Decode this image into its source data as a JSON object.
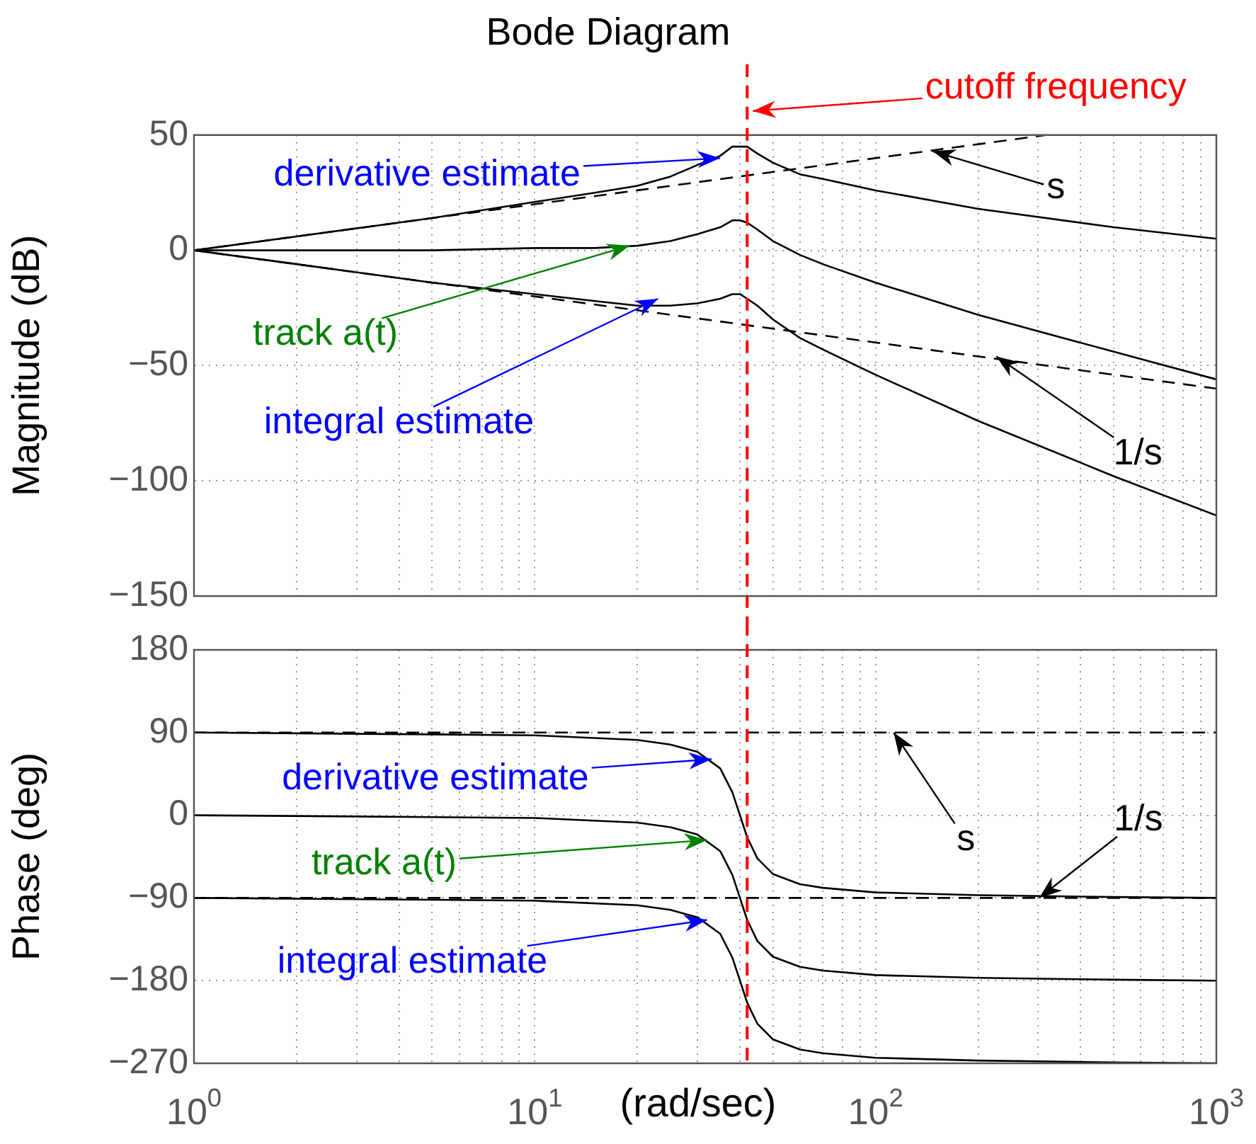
{
  "chart_data": [
    {
      "type": "line",
      "title": "Bode Diagram",
      "ylabel": "Magnitude (dB)",
      "log": "x",
      "grid": true,
      "marker": "none",
      "tick_labels": "y",
      "xlim": [
        1,
        1000
      ],
      "xticks": [
        {
          "value": 1,
          "label": null
        },
        {
          "value": 2,
          "label": null
        },
        {
          "value": 3,
          "label": null
        },
        {
          "value": 4,
          "label": null
        },
        {
          "value": 5,
          "label": null
        },
        {
          "value": 6,
          "label": null
        },
        {
          "value": 7,
          "label": null
        },
        {
          "value": 8,
          "label": null
        },
        {
          "value": 9,
          "label": null
        },
        {
          "value": 10,
          "label": null
        },
        {
          "value": 20,
          "label": null
        },
        {
          "value": 30,
          "label": null
        },
        {
          "value": 40,
          "label": null
        },
        {
          "value": 50,
          "label": null
        },
        {
          "value": 60,
          "label": null
        },
        {
          "value": 70,
          "label": null
        },
        {
          "value": 80,
          "label": null
        },
        {
          "value": 90,
          "label": null
        },
        {
          "value": 100,
          "label": null
        },
        {
          "value": 200,
          "label": null
        },
        {
          "value": 300,
          "label": null
        },
        {
          "value": 400,
          "label": null
        },
        {
          "value": 500,
          "label": null
        },
        {
          "value": 600,
          "label": null
        },
        {
          "value": 700,
          "label": null
        },
        {
          "value": 800,
          "label": null
        },
        {
          "value": 900,
          "label": null
        },
        {
          "value": 1000,
          "label": null
        }
      ],
      "ylim": [
        -150,
        50
      ],
      "yticks": [
        -150,
        -100,
        -50,
        0,
        50
      ],
      "series": [
        {
          "color": "#000000",
          "x": [
            1,
            2,
            5,
            10,
            15,
            20,
            25,
            30,
            35,
            38,
            40,
            42,
            45,
            50,
            60,
            70,
            100,
            200,
            500,
            1000
          ],
          "values": [
            0,
            6,
            14,
            21,
            25,
            28,
            32,
            37,
            41,
            45,
            45,
            45,
            42,
            38,
            33,
            31,
            26,
            18,
            10,
            5
          ]
        },
        {
          "color": "#000000",
          "x": [
            1,
            2,
            5,
            10,
            15,
            20,
            25,
            30,
            35,
            38,
            40,
            42,
            45,
            50,
            60,
            70,
            100,
            200,
            500,
            1000
          ],
          "values": [
            0,
            0,
            0,
            1,
            1,
            2,
            4,
            7,
            10,
            13,
            13,
            12,
            9,
            4,
            -2,
            -6,
            -14,
            -28,
            -44,
            -56
          ]
        },
        {
          "color": "#000000",
          "x": [
            1,
            2,
            5,
            10,
            15,
            20,
            25,
            30,
            35,
            38,
            40,
            42,
            45,
            50,
            60,
            70,
            100,
            200,
            500,
            1000
          ],
          "values": [
            0,
            -6,
            -14,
            -19,
            -22,
            -24,
            -24,
            -23,
            -21,
            -19,
            -19,
            -21,
            -24,
            -30,
            -38,
            -43,
            -54,
            -74,
            -98,
            -115
          ]
        },
        {
          "color": "#000000",
          "line_style": "dashed",
          "x": [
            1,
            316
          ],
          "values": [
            0,
            50
          ]
        },
        {
          "color": "#000000",
          "line_style": "dashed",
          "x": [
            1,
            1000
          ],
          "values": [
            0,
            -60
          ]
        }
      ],
      "ref_lines": [
        {
          "axis": "x",
          "value": 42,
          "label": "cutoff frequency",
          "color": "#ff0000",
          "line_style": "dashed"
        }
      ],
      "annotations": [
        {
          "text": "derivative estimate",
          "x": 35,
          "y": 40
        },
        {
          "text": "s",
          "x": 147,
          "y": 43
        },
        {
          "text": "track a(t)",
          "x": 19,
          "y": 2
        },
        {
          "text": "integral estimate",
          "x": 23,
          "y": -21
        },
        {
          "text": "1/s",
          "x": 226,
          "y": -46
        }
      ]
    },
    {
      "type": "line",
      "xlabel": "(rad/sec)",
      "ylabel": "Phase (deg)",
      "log": "x",
      "grid": true,
      "marker": "none",
      "xlim": [
        1,
        1000
      ],
      "xticks": [
        {
          "value": 1,
          "label": "10$^{0}$"
        },
        {
          "value": 2,
          "label": null
        },
        {
          "value": 3,
          "label": null
        },
        {
          "value": 4,
          "label": null
        },
        {
          "value": 5,
          "label": null
        },
        {
          "value": 6,
          "label": null
        },
        {
          "value": 7,
          "label": null
        },
        {
          "value": 8,
          "label": null
        },
        {
          "value": 9,
          "label": null
        },
        {
          "value": 10,
          "label": "10$^{1}$"
        },
        {
          "value": 20,
          "label": null
        },
        {
          "value": 30,
          "label": null
        },
        {
          "value": 40,
          "label": null
        },
        {
          "value": 50,
          "label": null
        },
        {
          "value": 60,
          "label": null
        },
        {
          "value": 70,
          "label": null
        },
        {
          "value": 80,
          "label": null
        },
        {
          "value": 90,
          "label": null
        },
        {
          "value": 100,
          "label": "10$^{2}$"
        },
        {
          "value": 200,
          "label": null
        },
        {
          "value": 300,
          "label": null
        },
        {
          "value": 400,
          "label": null
        },
        {
          "value": 500,
          "label": null
        },
        {
          "value": 600,
          "label": null
        },
        {
          "value": 700,
          "label": null
        },
        {
          "value": 800,
          "label": null
        },
        {
          "value": 900,
          "label": null
        },
        {
          "value": 1000,
          "label": "10$^{3}$"
        }
      ],
      "ylim": [
        -270,
        180
      ],
      "yticks": [
        -270,
        -180,
        -90,
        0,
        90,
        180
      ],
      "series": [
        {
          "color": "#000000",
          "x": [
            1,
            5,
            10,
            20,
            25,
            30,
            35,
            38,
            40,
            42,
            45,
            50,
            60,
            70,
            100,
            200,
            500,
            1000
          ],
          "values": [
            90,
            88,
            87,
            82,
            77,
            69,
            51,
            25,
            0,
            -24,
            -47,
            -64,
            -75,
            -79,
            -84,
            -87,
            -89,
            -90
          ]
        },
        {
          "color": "#000000",
          "x": [
            1,
            5,
            10,
            20,
            25,
            30,
            35,
            38,
            40,
            42,
            45,
            50,
            60,
            70,
            100,
            200,
            500,
            1000
          ],
          "values": [
            0,
            -2,
            -3,
            -8,
            -13,
            -21,
            -39,
            -65,
            -90,
            -114,
            -137,
            -154,
            -165,
            -169,
            -174,
            -177,
            -179,
            -180
          ]
        },
        {
          "color": "#000000",
          "x": [
            1,
            5,
            10,
            20,
            25,
            30,
            35,
            38,
            40,
            42,
            45,
            50,
            60,
            70,
            100,
            200,
            500,
            1000
          ],
          "values": [
            -90,
            -92,
            -93,
            -98,
            -103,
            -111,
            -129,
            -155,
            -180,
            -204,
            -227,
            -244,
            -255,
            -259,
            -264,
            -267,
            -269,
            -270
          ]
        },
        {
          "color": "#000000",
          "line_style": "dashed",
          "x": [
            1,
            1000
          ],
          "values": [
            90,
            90
          ]
        },
        {
          "color": "#000000",
          "line_style": "dashed",
          "x": [
            1,
            1000
          ],
          "values": [
            -90,
            -90
          ]
        }
      ],
      "ref_lines": [
        {
          "axis": "x",
          "value": 42,
          "color": "#ff0000",
          "line_style": "dashed"
        }
      ],
      "annotations": [
        {
          "text": "derivative estimate",
          "x": 33,
          "y": 61
        },
        {
          "text": "s",
          "x": 113,
          "y": 90
        },
        {
          "text": "1/s",
          "x": 302,
          "y": -90
        },
        {
          "text": "track a(t)",
          "x": 32,
          "y": -27
        },
        {
          "text": "integral estimate",
          "x": 32,
          "y": -114
        }
      ]
    }
  ]
}
